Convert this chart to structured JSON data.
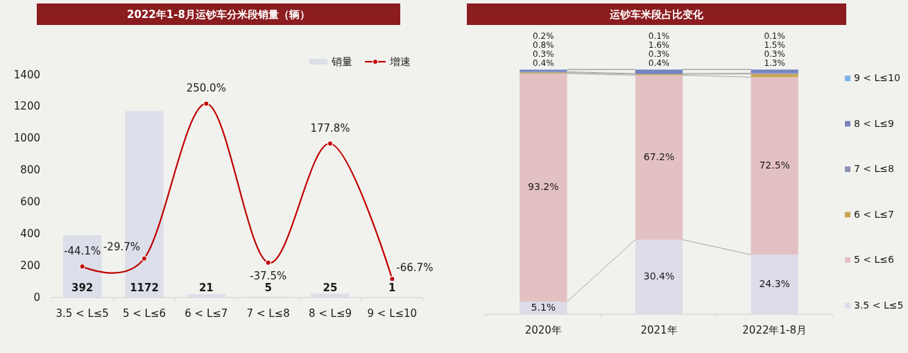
{
  "chart_data": [
    {
      "type": "bar",
      "title": "2022年1-8月运钞车分米段销量（辆）",
      "categories": [
        "3.5 < L≤5",
        "5 < L≤6",
        "6 < L≤7",
        "7 < L≤8",
        "8 < L≤9",
        "9 < L≤10"
      ],
      "series": [
        {
          "name": "销量",
          "type": "bar",
          "color": "#dcdee9",
          "values": [
            392,
            1172,
            21,
            5,
            25,
            1
          ],
          "value_labels": [
            "392",
            "1172",
            "21",
            "5",
            "25",
            "1"
          ]
        },
        {
          "name": "增速",
          "type": "line",
          "axis": "y2",
          "color": "#c00000",
          "values": [
            -44.1,
            -29.7,
            250.0,
            -37.5,
            177.8,
            -66.7
          ],
          "value_labels": [
            "-44.1%",
            "-29.7%",
            "250.0%",
            "-37.5%",
            "177.8%",
            "-66.7%"
          ]
        }
      ],
      "ylim": [
        0,
        1400
      ],
      "yticks": [
        0,
        200,
        400,
        600,
        800,
        1000,
        1200,
        1400
      ],
      "legend": "top right",
      "marker": "circle"
    },
    {
      "type": "bar",
      "title": "运钞车米段占比变化",
      "categories": [
        "2020年",
        "2021年",
        "2022年1-8月"
      ],
      "stacked": true,
      "ylim": [
        0,
        100
      ],
      "tick_labels": "x",
      "legend": "right",
      "series": [
        {
          "name": "3.5 < L≤5",
          "color": "#dcdde8",
          "values": [
            5.1,
            30.4,
            24.3
          ],
          "value_labels": [
            "5.1%",
            "30.4%",
            "24.3%"
          ]
        },
        {
          "name": "5 < L≤6",
          "color": "#e3c1c3",
          "values": [
            93.2,
            67.2,
            72.5
          ],
          "value_labels": [
            "93.2%",
            "67.2%",
            "72.5%"
          ]
        },
        {
          "name": "6 < L≤7",
          "color": "#c8a850",
          "values": [
            0.4,
            0.4,
            1.3
          ],
          "value_labels": [
            "0.4%",
            "0.4%",
            "1.3%"
          ]
        },
        {
          "name": "7 < L≤8",
          "color": "#8c92b3",
          "values": [
            0.3,
            0.3,
            0.3
          ],
          "value_labels": [
            "0.3%",
            "0.3%",
            "0.3%"
          ]
        },
        {
          "name": "8 < L≤9",
          "color": "#7783c0",
          "values": [
            0.8,
            1.6,
            1.5
          ],
          "value_labels": [
            "0.8%",
            "1.6%",
            "1.5%"
          ]
        },
        {
          "name": "9 < L≤10",
          "color": "#7fb0e8",
          "values": [
            0.2,
            0.1,
            0.1
          ],
          "value_labels": [
            "0.2%",
            "0.1%",
            "0.1%"
          ]
        }
      ]
    }
  ]
}
